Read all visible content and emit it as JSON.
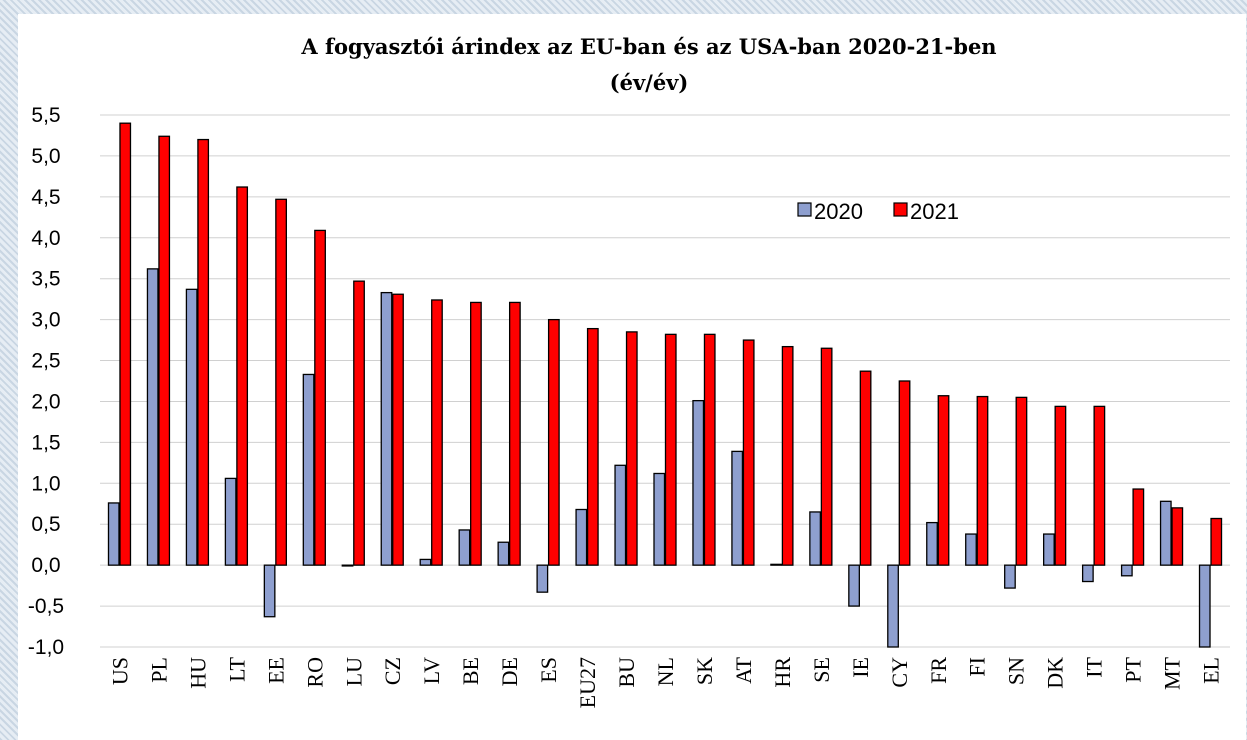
{
  "chart_data": {
    "type": "bar",
    "title": "A fogyasztói árindex az EU-ban és az USA-ban 2020-21-ben",
    "subtitle": "(év/év)",
    "xlabel": "",
    "ylabel": "",
    "ylim": [
      -1.0,
      5.5
    ],
    "yticks": [
      "5,5",
      "5,0",
      "4,5",
      "4,0",
      "3,5",
      "3,0",
      "2,5",
      "2,0",
      "1,5",
      "1,0",
      "0,5",
      "0,0",
      "-0,5",
      "-1,0"
    ],
    "grid": true,
    "legend_position": "top-right",
    "categories": [
      "US",
      "PL",
      "HU",
      "LT",
      "EE",
      "RO",
      "LU",
      "CZ",
      "LV",
      "BE",
      "DE",
      "ES",
      "EU27",
      "BU",
      "NL",
      "SK",
      "AT",
      "HR",
      "SE",
      "IE",
      "CY",
      "FR",
      "FI",
      "SN",
      "DK",
      "IT",
      "PT",
      "MT",
      "EL"
    ],
    "series": [
      {
        "name": "2020",
        "color": "#8e9fcf",
        "values": [
          0.76,
          3.62,
          3.37,
          1.06,
          -0.63,
          2.33,
          0.0,
          3.33,
          0.07,
          0.43,
          0.28,
          -0.33,
          0.68,
          1.22,
          1.12,
          2.01,
          1.39,
          0.01,
          0.65,
          -0.5,
          -1.1,
          0.52,
          0.38,
          -0.28,
          0.38,
          -0.2,
          -0.13,
          0.78,
          -1.1
        ]
      },
      {
        "name": "2021",
        "color": "#ff0000",
        "values": [
          5.4,
          5.24,
          5.2,
          4.62,
          4.47,
          4.09,
          3.47,
          3.31,
          3.24,
          3.21,
          3.21,
          3.0,
          2.89,
          2.85,
          2.82,
          2.82,
          2.75,
          2.67,
          2.65,
          2.37,
          2.25,
          2.07,
          2.06,
          2.05,
          1.94,
          1.94,
          0.93,
          0.7,
          0.57
        ]
      }
    ]
  }
}
